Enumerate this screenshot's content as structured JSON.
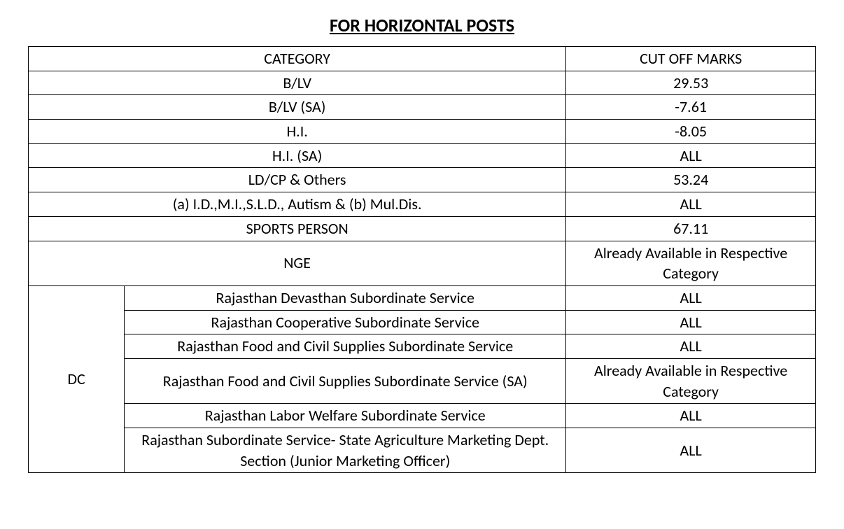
{
  "title": "FOR HORIZONTAL POSTS",
  "headers": {
    "category": "CATEGORY",
    "cutoff": "CUT OFF MARKS"
  },
  "simpleRows": [
    {
      "category": "B/LV",
      "cutoff": "29.53"
    },
    {
      "category": "B/LV (SA)",
      "cutoff": "-7.61"
    },
    {
      "category": "H.I.",
      "cutoff": "-8.05"
    },
    {
      "category": "H.I. (SA)",
      "cutoff": "ALL"
    },
    {
      "category": "LD/CP & Others",
      "cutoff": "53.24"
    },
    {
      "category": "(a) I.D.,M.I.,S.L.D., Autism & (b) Mul.Dis.",
      "cutoff": "ALL"
    },
    {
      "category": "SPORTS PERSON",
      "cutoff": "67.11"
    },
    {
      "category": "NGE",
      "cutoff": "Already Available in Respective Category"
    }
  ],
  "dcLabel": "DC",
  "dcRows": [
    {
      "service": "Rajasthan Devasthan Subordinate Service",
      "cutoff": "ALL"
    },
    {
      "service": "Rajasthan Cooperative Subordinate Service",
      "cutoff": "ALL"
    },
    {
      "service": "Rajasthan Food and Civil Supplies Subordinate Service",
      "cutoff": "ALL"
    },
    {
      "service": "Rajasthan Food and Civil Supplies Subordinate Service (SA)",
      "cutoff": "Already Available in Respective Category"
    },
    {
      "service": "Rajasthan Labor Welfare Subordinate Service",
      "cutoff": "ALL"
    },
    {
      "service": "Rajasthan Subordinate Service- State Agriculture Marketing Dept. Section (Junior Marketing Officer)",
      "cutoff": "ALL"
    }
  ]
}
